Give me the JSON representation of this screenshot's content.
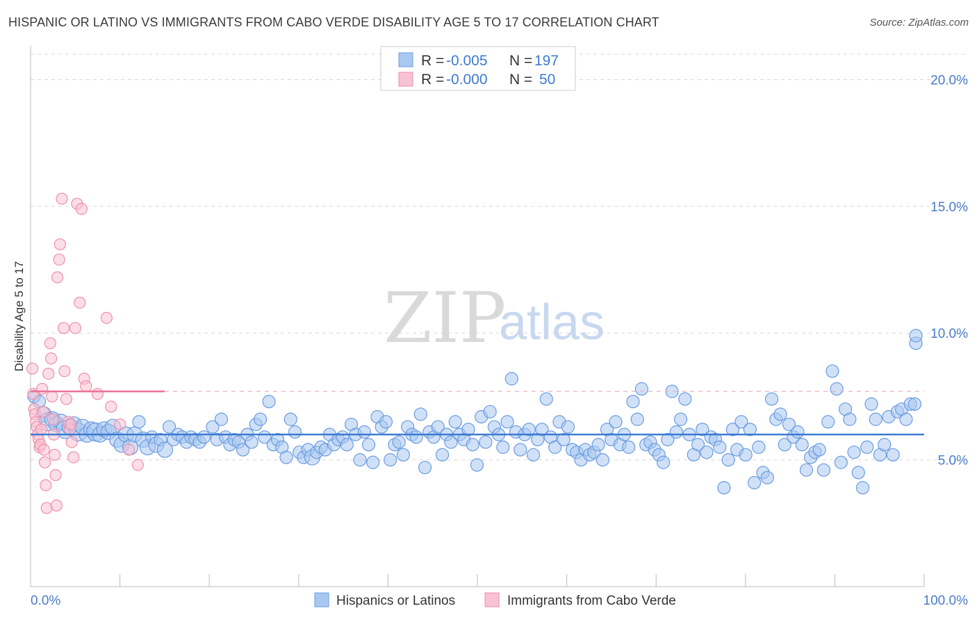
{
  "title": "HISPANIC OR LATINO VS IMMIGRANTS FROM CABO VERDE DISABILITY AGE 5 TO 17 CORRELATION CHART",
  "source": "Source: ZipAtlas.com",
  "watermark": {
    "zip": "ZIP",
    "atlas": "atlas"
  },
  "colors": {
    "blue_fill": "#a9c8f0",
    "blue_stroke": "#6a9be0",
    "blue_line": "#3d7bd1",
    "pink_fill": "#f7c2d1",
    "pink_stroke": "#ee8fab",
    "pink_line": "#ec6f95",
    "grid": "#d8d8d8",
    "axis": "#bbbbbb"
  },
  "legend": {
    "r_label": "R =",
    "n_label": "N =",
    "rows": [
      {
        "r": "-0.005",
        "n": "197",
        "color": "blue"
      },
      {
        "r": "-0.000",
        "n": "50",
        "color": "pink"
      }
    ]
  },
  "chart_data": {
    "type": "scatter",
    "title": "HISPANIC OR LATINO VS IMMIGRANTS FROM CABO VERDE DISABILITY AGE 5 TO 17 CORRELATION CHART",
    "xlabel": "",
    "ylabel": "Disability Age 5 to 17",
    "xlim": [
      0,
      100
    ],
    "ylim": [
      0,
      21
    ],
    "x_tick_labels": [
      {
        "value": 0,
        "label": "0.0%"
      },
      {
        "value": 100,
        "label": "100.0%"
      }
    ],
    "y_ticks": [
      {
        "value": 5,
        "label": "5.0%"
      },
      {
        "value": 10,
        "label": "10.0%"
      },
      {
        "value": 15,
        "label": "15.0%"
      },
      {
        "value": 20,
        "label": "20.0%"
      }
    ],
    "series": [
      {
        "name": "Hispanics or Latinos",
        "color": "blue",
        "r": -0.005,
        "n": 197,
        "trend": {
          "x": [
            0,
            100
          ],
          "y": [
            6.0,
            6.0
          ]
        },
        "points": [
          [
            0.4,
            7.5,
            1
          ],
          [
            1,
            7.3,
            1
          ],
          [
            1.5,
            6.8,
            2
          ],
          [
            2,
            6.5,
            3
          ],
          [
            2.5,
            6.6,
            2
          ],
          [
            3,
            6.4,
            2
          ],
          [
            3.5,
            6.5,
            2
          ],
          [
            4,
            6.2,
            3
          ],
          [
            4.5,
            6.3,
            2
          ],
          [
            5,
            6.4,
            2
          ],
          [
            5.5,
            6.1,
            3
          ],
          [
            6,
            6.3,
            2
          ],
          [
            6.5,
            6.0,
            2
          ],
          [
            7,
            6.2,
            2
          ],
          [
            7.5,
            6.1,
            3
          ],
          [
            8,
            6.0,
            2
          ],
          [
            8.5,
            6.2,
            2
          ],
          [
            9,
            6.1,
            2
          ],
          [
            9.5,
            6.3,
            2
          ],
          [
            10,
            5.8,
            2
          ],
          [
            10.5,
            5.6,
            2
          ],
          [
            11,
            6.0,
            2
          ],
          [
            11.5,
            5.5,
            2
          ],
          [
            12,
            6.0,
            2
          ],
          [
            12.5,
            6.5,
            1
          ],
          [
            13,
            5.8,
            2
          ],
          [
            13.5,
            5.5,
            2
          ],
          [
            14,
            5.9,
            1
          ],
          [
            14.5,
            5.6,
            2
          ],
          [
            15,
            5.8,
            1
          ],
          [
            15.5,
            5.4,
            2
          ],
          [
            16,
            6.3,
            1
          ],
          [
            16.5,
            5.8,
            1
          ],
          [
            17,
            6.0,
            1
          ],
          [
            17.5,
            5.9,
            1
          ],
          [
            18,
            5.7,
            1
          ],
          [
            18.5,
            5.9,
            1
          ],
          [
            19,
            5.8,
            1
          ],
          [
            19.5,
            5.7,
            1
          ],
          [
            20,
            5.9,
            1
          ],
          [
            21,
            6.3,
            1
          ],
          [
            21.5,
            5.8,
            1
          ],
          [
            22,
            6.6,
            1
          ],
          [
            22.5,
            5.9,
            1
          ],
          [
            23,
            5.6,
            1
          ],
          [
            23.5,
            5.8,
            1
          ],
          [
            24,
            5.7,
            1
          ],
          [
            24.5,
            5.4,
            1
          ],
          [
            25,
            6.0,
            1
          ],
          [
            25.5,
            5.7,
            1
          ],
          [
            26,
            6.4,
            1
          ],
          [
            26.5,
            6.6,
            1
          ],
          [
            27,
            5.9,
            1
          ],
          [
            27.5,
            7.3,
            1
          ],
          [
            28,
            5.6,
            1
          ],
          [
            28.5,
            5.8,
            1
          ],
          [
            29,
            5.5,
            1
          ],
          [
            29.5,
            5.1,
            1
          ],
          [
            30,
            6.6,
            1
          ],
          [
            30.5,
            6.1,
            1
          ],
          [
            31,
            5.3,
            1
          ],
          [
            31.5,
            5.1,
            1
          ],
          [
            32,
            5.4,
            1
          ],
          [
            32.5,
            5.1,
            2
          ],
          [
            33,
            5.3,
            1
          ],
          [
            33.5,
            5.5,
            1
          ],
          [
            34,
            5.4,
            1
          ],
          [
            34.5,
            6.0,
            1
          ],
          [
            35,
            5.6,
            1
          ],
          [
            35.5,
            5.8,
            1
          ],
          [
            36,
            5.9,
            1
          ],
          [
            36.5,
            5.6,
            1
          ],
          [
            37,
            6.4,
            1
          ],
          [
            37.5,
            6.0,
            1
          ],
          [
            38,
            5.0,
            1
          ],
          [
            38.5,
            6.1,
            1
          ],
          [
            39,
            5.6,
            1
          ],
          [
            39.5,
            4.9,
            1
          ],
          [
            40,
            6.7,
            1
          ],
          [
            40.5,
            6.3,
            1
          ],
          [
            41,
            6.5,
            1
          ],
          [
            41.5,
            5.0,
            1
          ],
          [
            42,
            5.6,
            1
          ],
          [
            42.5,
            5.7,
            1
          ],
          [
            43,
            5.2,
            1
          ],
          [
            43.5,
            6.3,
            1
          ],
          [
            44,
            6.0,
            1
          ],
          [
            44.5,
            5.9,
            1
          ],
          [
            45,
            6.8,
            1
          ],
          [
            45.5,
            4.7,
            1
          ],
          [
            46,
            6.1,
            1
          ],
          [
            46.5,
            5.9,
            1
          ],
          [
            47,
            6.3,
            1
          ],
          [
            47.5,
            5.2,
            1
          ],
          [
            48,
            6.0,
            1
          ],
          [
            48.5,
            5.7,
            1
          ],
          [
            49,
            6.5,
            1
          ],
          [
            49.5,
            6.0,
            1
          ],
          [
            50,
            5.8,
            1
          ],
          [
            50.5,
            6.2,
            1
          ],
          [
            51,
            5.6,
            1
          ],
          [
            51.5,
            4.8,
            1
          ],
          [
            52,
            6.7,
            1
          ],
          [
            52.5,
            5.7,
            1
          ],
          [
            53,
            6.9,
            1
          ],
          [
            53.5,
            6.3,
            1
          ],
          [
            54,
            6.0,
            1
          ],
          [
            54.5,
            5.5,
            1
          ],
          [
            55,
            6.5,
            1
          ],
          [
            55.5,
            8.2,
            1
          ],
          [
            56,
            6.1,
            1
          ],
          [
            56.5,
            5.4,
            1
          ],
          [
            57,
            6.0,
            1
          ],
          [
            57.5,
            6.2,
            1
          ],
          [
            58,
            5.2,
            1
          ],
          [
            58.5,
            5.8,
            1
          ],
          [
            59,
            6.2,
            1
          ],
          [
            59.5,
            7.4,
            1
          ],
          [
            60,
            5.9,
            1
          ],
          [
            60.5,
            5.5,
            1
          ],
          [
            61,
            6.5,
            1
          ],
          [
            61.5,
            5.8,
            1
          ],
          [
            62,
            6.3,
            1
          ],
          [
            62.5,
            5.4,
            1
          ],
          [
            63,
            5.3,
            1
          ],
          [
            63.5,
            5.0,
            1
          ],
          [
            64,
            5.4,
            1
          ],
          [
            64.5,
            5.2,
            1
          ],
          [
            65,
            5.3,
            1
          ],
          [
            65.5,
            5.6,
            1
          ],
          [
            66,
            5.0,
            1
          ],
          [
            66.5,
            6.2,
            1
          ],
          [
            67,
            5.8,
            1
          ],
          [
            67.5,
            6.5,
            1
          ],
          [
            68,
            5.6,
            1
          ],
          [
            68.5,
            6.0,
            1
          ],
          [
            69,
            5.5,
            1
          ],
          [
            69.5,
            7.3,
            1
          ],
          [
            70,
            6.6,
            1
          ],
          [
            70.5,
            7.8,
            1
          ],
          [
            71,
            5.6,
            1
          ],
          [
            71.5,
            5.7,
            1
          ],
          [
            72,
            5.4,
            1
          ],
          [
            72.5,
            5.2,
            1
          ],
          [
            73,
            4.9,
            1
          ],
          [
            73.5,
            5.8,
            1
          ],
          [
            74,
            7.7,
            1
          ],
          [
            74.5,
            6.1,
            1
          ],
          [
            75,
            6.6,
            1
          ],
          [
            75.5,
            7.4,
            1
          ],
          [
            76,
            6.0,
            1
          ],
          [
            76.5,
            5.2,
            1
          ],
          [
            77,
            5.6,
            1
          ],
          [
            77.5,
            6.2,
            1
          ],
          [
            78,
            5.3,
            1
          ],
          [
            78.5,
            5.9,
            1
          ],
          [
            79,
            5.8,
            1
          ],
          [
            79.5,
            5.5,
            1
          ],
          [
            80,
            3.9,
            1
          ],
          [
            80.5,
            5.0,
            1
          ],
          [
            81,
            6.2,
            1
          ],
          [
            81.5,
            5.4,
            1
          ],
          [
            82,
            6.5,
            1
          ],
          [
            82.5,
            5.2,
            1
          ],
          [
            83,
            6.2,
            1
          ],
          [
            83.5,
            4.1,
            1
          ],
          [
            84,
            5.5,
            1
          ],
          [
            84.5,
            4.5,
            1
          ],
          [
            85,
            4.3,
            1
          ],
          [
            85.5,
            7.4,
            1
          ],
          [
            86,
            6.6,
            1
          ],
          [
            86.5,
            6.8,
            1
          ],
          [
            87,
            5.6,
            1
          ],
          [
            87.5,
            6.4,
            1
          ],
          [
            88,
            5.9,
            1
          ],
          [
            88.5,
            6.1,
            1
          ],
          [
            89,
            5.6,
            1
          ],
          [
            89.5,
            4.6,
            1
          ],
          [
            90,
            5.1,
            1
          ],
          [
            90.5,
            5.3,
            1
          ],
          [
            91,
            5.4,
            1
          ],
          [
            91.5,
            4.6,
            1
          ],
          [
            92,
            6.5,
            1
          ],
          [
            92.5,
            8.5,
            1
          ],
          [
            93,
            7.8,
            1
          ],
          [
            93.5,
            4.9,
            1
          ],
          [
            94,
            7.0,
            1
          ],
          [
            94.5,
            6.6,
            1
          ],
          [
            95,
            5.3,
            1
          ],
          [
            95.5,
            4.5,
            1
          ],
          [
            96,
            3.9,
            1
          ],
          [
            96.5,
            5.5,
            1
          ],
          [
            97,
            7.2,
            1
          ],
          [
            97.5,
            6.6,
            1
          ],
          [
            98,
            5.2,
            1
          ],
          [
            98.5,
            5.6,
            1
          ],
          [
            99,
            6.7,
            1
          ],
          [
            99.5,
            5.2,
            1
          ],
          [
            100,
            6.9,
            1
          ],
          [
            100.5,
            7.0,
            1
          ],
          [
            101,
            6.6,
            1
          ],
          [
            101.5,
            7.2,
            1
          ],
          [
            102,
            7.2,
            1
          ],
          [
            102.5,
            9.6,
            1
          ],
          [
            103,
            9.9,
            1
          ]
        ]
      },
      {
        "name": "Immigrants from Cabo Verde",
        "color": "pink",
        "r": -0.0,
        "n": 50,
        "trend": {
          "x": [
            0,
            15
          ],
          "y": [
            7.7,
            7.7
          ]
        },
        "points": [
          [
            0.2,
            8.6
          ],
          [
            0.3,
            7.6
          ],
          [
            0.4,
            7.0
          ],
          [
            0.5,
            6.8
          ],
          [
            0.6,
            6.5
          ],
          [
            0.7,
            6.3
          ],
          [
            0.8,
            6.0
          ],
          [
            0.9,
            5.8
          ],
          [
            1,
            5.5
          ],
          [
            1.1,
            5.6
          ],
          [
            1.2,
            6.2
          ],
          [
            1.3,
            7.8
          ],
          [
            1.4,
            6.9
          ],
          [
            1.5,
            5.4
          ],
          [
            1.6,
            4.9
          ],
          [
            1.7,
            4.0
          ],
          [
            1.8,
            3.1
          ],
          [
            2,
            8.4
          ],
          [
            2.2,
            9.6
          ],
          [
            2.3,
            9.0
          ],
          [
            2.4,
            7.5
          ],
          [
            2.5,
            6.6
          ],
          [
            2.6,
            6.0
          ],
          [
            2.7,
            5.2
          ],
          [
            2.8,
            4.4
          ],
          [
            2.9,
            3.2
          ],
          [
            3,
            12.2
          ],
          [
            3.2,
            12.9
          ],
          [
            3.3,
            13.5
          ],
          [
            3.5,
            15.3
          ],
          [
            3.7,
            10.2
          ],
          [
            3.8,
            8.5
          ],
          [
            4,
            7.4
          ],
          [
            4.2,
            6.5
          ],
          [
            4.4,
            6.2
          ],
          [
            4.5,
            6.4
          ],
          [
            4.6,
            5.7
          ],
          [
            4.8,
            5.1
          ],
          [
            5,
            10.2
          ],
          [
            5.2,
            15.1
          ],
          [
            5.5,
            11.2
          ],
          [
            5.7,
            14.9
          ],
          [
            6,
            8.2
          ],
          [
            6.2,
            7.9
          ],
          [
            7.5,
            7.6
          ],
          [
            8.5,
            10.6
          ],
          [
            9,
            7.1
          ],
          [
            10,
            6.4
          ],
          [
            11,
            5.4
          ],
          [
            12,
            4.8
          ]
        ]
      }
    ]
  },
  "bottom_legend": [
    "Hispanics or Latinos",
    "Immigrants from Cabo Verde"
  ]
}
